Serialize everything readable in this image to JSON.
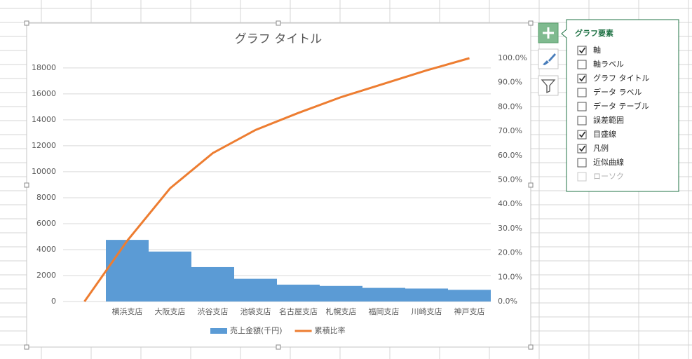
{
  "chart_data": {
    "type": "bar",
    "title": "グラフ タイトル",
    "categories": [
      null,
      "横浜支店",
      "大阪支店",
      "渋谷支店",
      "池袋支店",
      "名古屋支店",
      "札幌支店",
      "福岡支店",
      "川崎支店",
      "神戸支店"
    ],
    "series": [
      {
        "name": "売上金額(千円)",
        "type": "bar",
        "color": "#5b9bd5",
        "values": [
          null,
          4750,
          3850,
          2650,
          1750,
          1300,
          1200,
          1050,
          1000,
          900
        ]
      },
      {
        "name": "累積比率",
        "type": "line",
        "axis": "y2",
        "color": "#ed7d31",
        "values": [
          0,
          25,
          46.5,
          61,
          70.5,
          77.5,
          84,
          89.5,
          95,
          100
        ]
      }
    ],
    "ylim": [
      0,
      18750
    ],
    "yticks": [
      0,
      2000,
      4000,
      6000,
      8000,
      10000,
      12000,
      14000,
      16000,
      18000
    ],
    "y2lim": [
      0,
      100
    ],
    "y2ticks": [
      {
        "value": 0,
        "label": "0.0%"
      },
      {
        "value": 10,
        "label": "10.0%"
      },
      {
        "value": 20,
        "label": "20.0%"
      },
      {
        "value": 30,
        "label": "30.0%"
      },
      {
        "value": 40,
        "label": "40.0%"
      },
      {
        "value": 50,
        "label": "50.0%"
      },
      {
        "value": 60,
        "label": "60.0%"
      },
      {
        "value": 70,
        "label": "70.0%"
      },
      {
        "value": 80,
        "label": "80.0%"
      },
      {
        "value": 90,
        "label": "90.0%"
      },
      {
        "value": 100,
        "label": "100.0%"
      }
    ],
    "grid": true,
    "legend": "bottom"
  },
  "chart_elements_panel": {
    "title": "グラフ要素",
    "items": [
      {
        "label": "軸",
        "checked": true
      },
      {
        "label": "軸ラベル",
        "checked": false
      },
      {
        "label": "グラフ タイトル",
        "checked": true
      },
      {
        "label": "データ ラベル",
        "checked": false
      },
      {
        "label": "データ テーブル",
        "checked": false
      },
      {
        "label": "誤差範囲",
        "checked": false
      },
      {
        "label": "目盛線",
        "checked": true
      },
      {
        "label": "凡例",
        "checked": true
      },
      {
        "label": "近似曲線",
        "checked": false
      },
      {
        "label": "ローソク",
        "checked": false,
        "disabled": true
      }
    ]
  }
}
